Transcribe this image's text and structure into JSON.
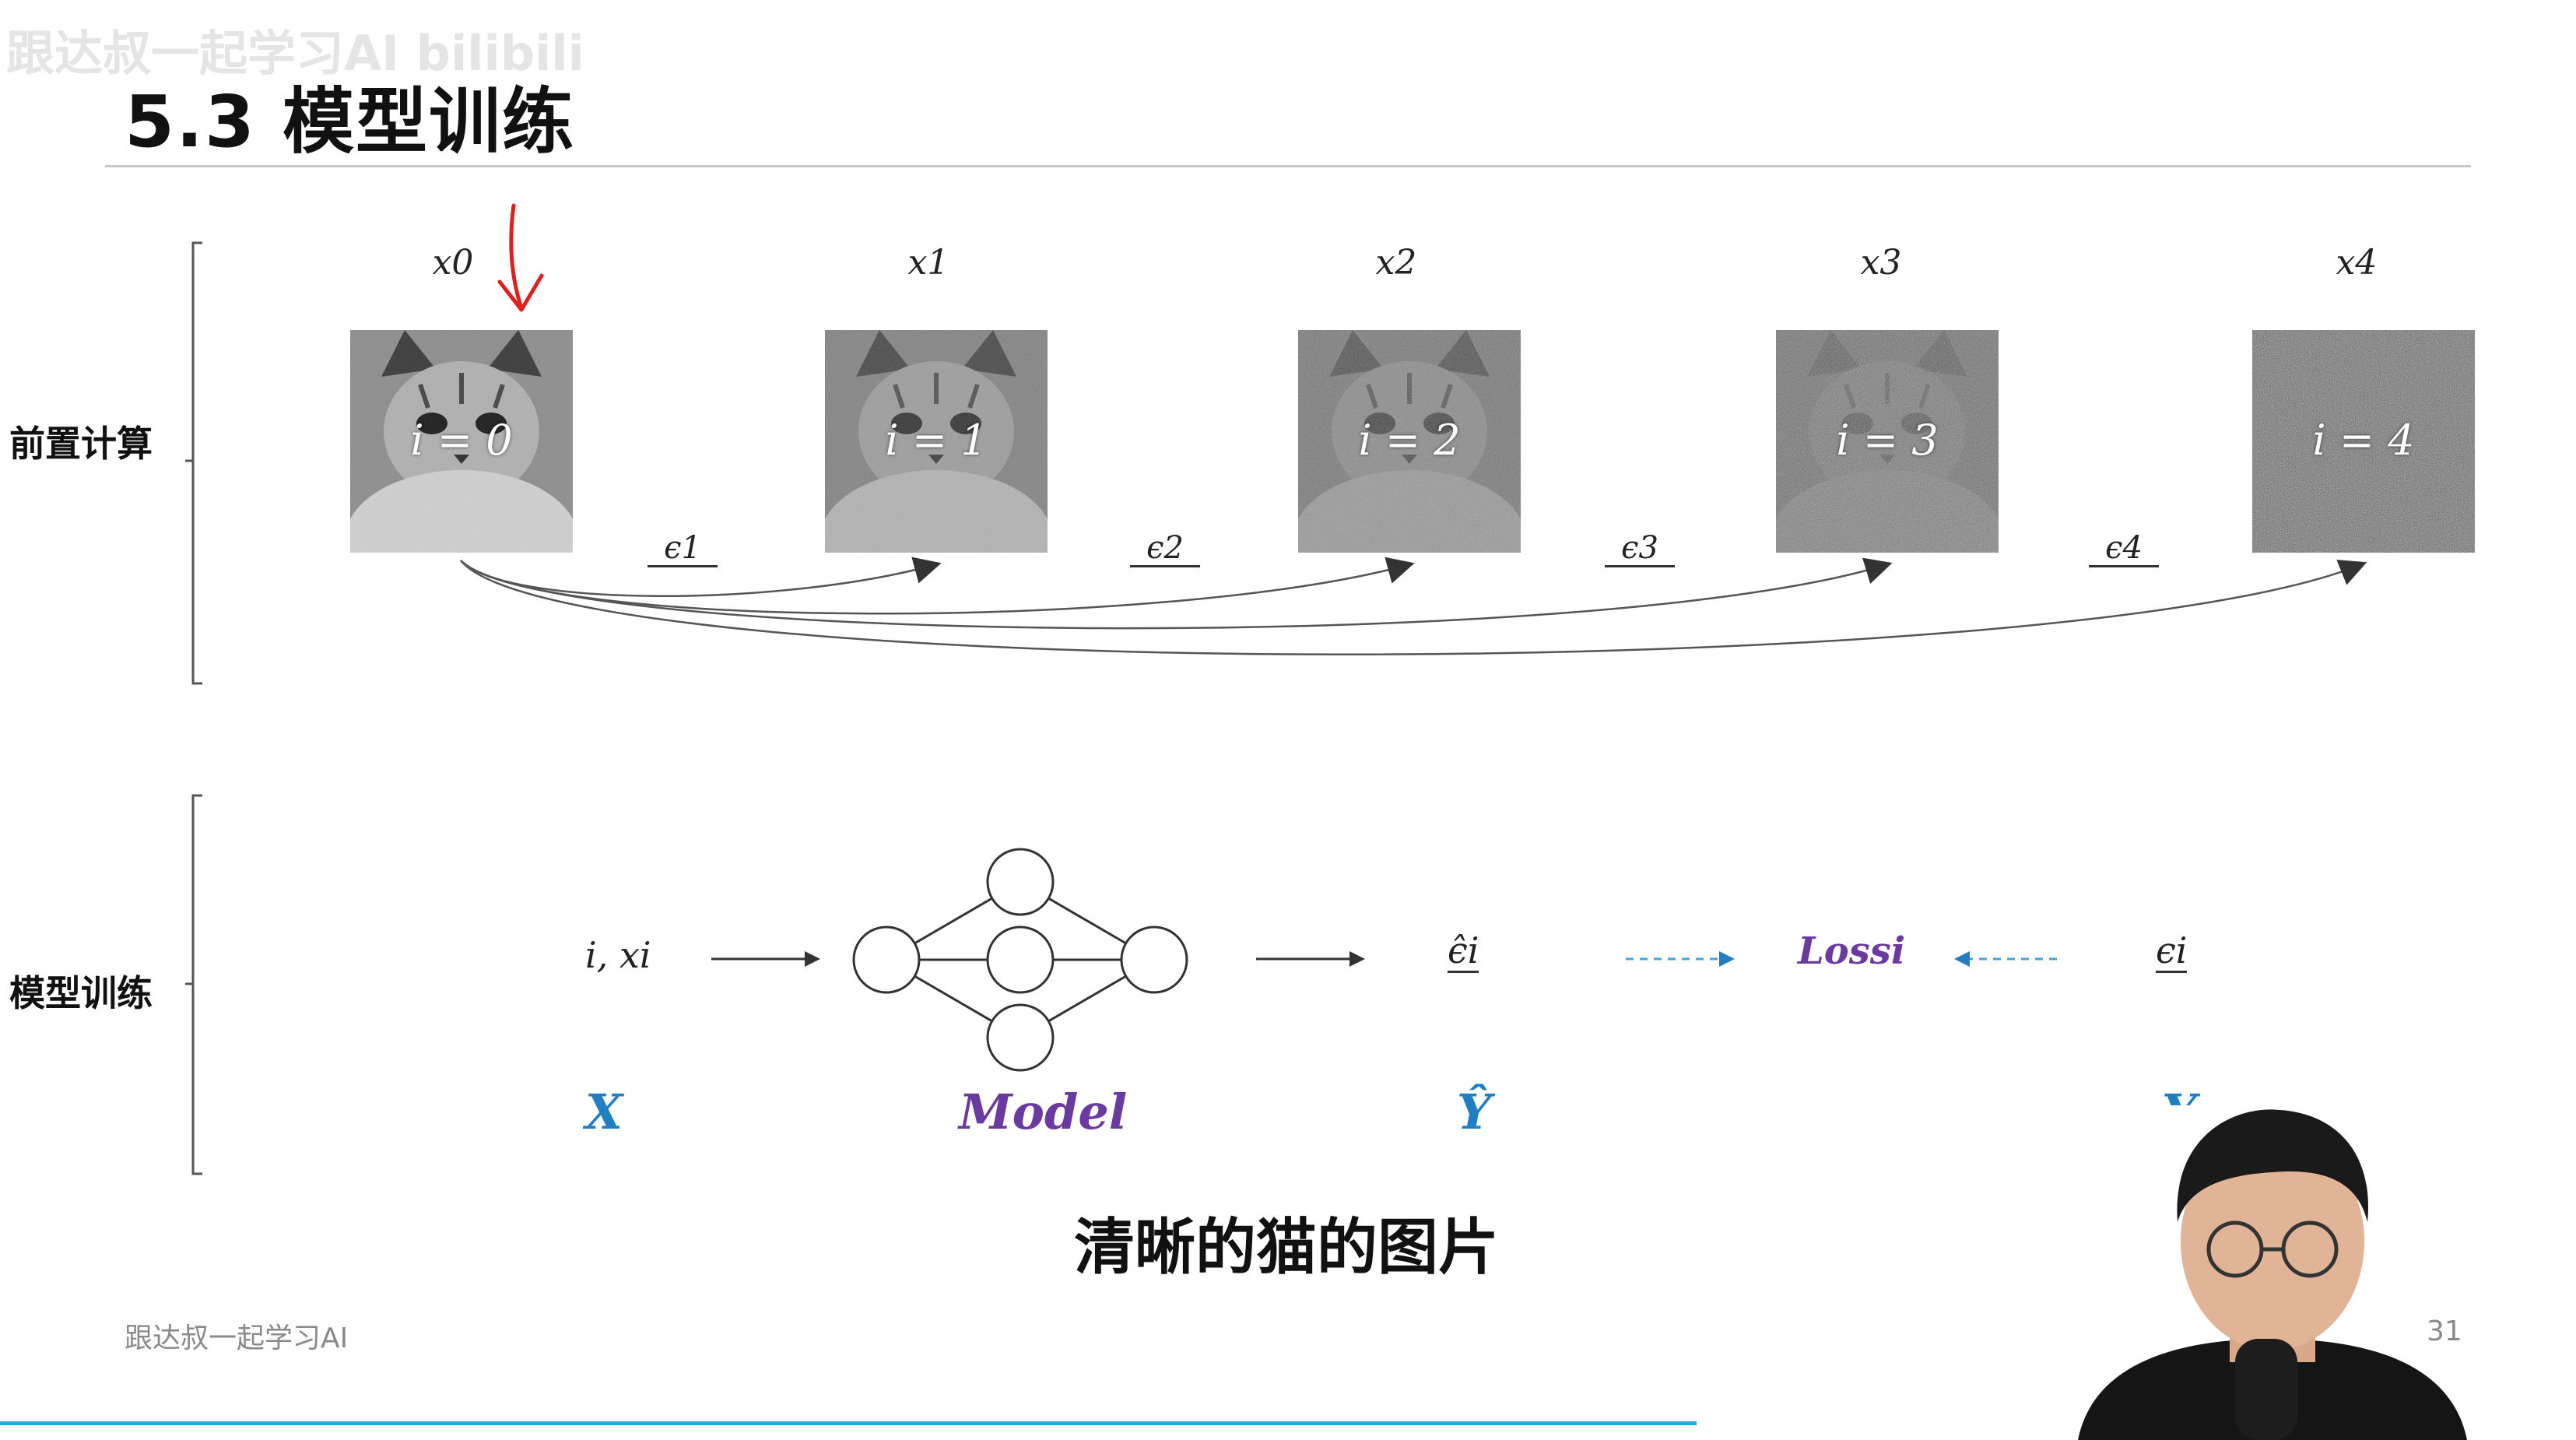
{
  "watermark": "跟达叔一起学习AI  bilibili",
  "slide": {
    "title": "5.3  模型训练",
    "sections": {
      "precompute": "前置计算",
      "training": "模型训练"
    }
  },
  "diffusion": {
    "frames": [
      {
        "x_label": "x0",
        "step_text": "i = 0",
        "noise_level": 0.0
      },
      {
        "x_label": "x1",
        "step_text": "i = 1",
        "noise_level": 0.25
      },
      {
        "x_label": "x2",
        "step_text": "i = 2",
        "noise_level": 0.5
      },
      {
        "x_label": "x3",
        "step_text": "i = 3",
        "noise_level": 0.75
      },
      {
        "x_label": "x4",
        "step_text": "i = 4",
        "noise_level": 1.0
      }
    ],
    "noise_labels": [
      "ϵ1",
      "ϵ2",
      "ϵ3",
      "ϵ4"
    ]
  },
  "training": {
    "input_text": "i, xi",
    "prediction_text": "ϵ̂i",
    "loss_text": "Lossi",
    "target_text": "ϵi",
    "roles": {
      "x": "X",
      "model": "Model",
      "y_hat": "Ŷ",
      "y": "Y"
    }
  },
  "colors": {
    "blue": "#1f7fc2",
    "purple": "#6b3aa0",
    "red_arrow": "#e02020",
    "dashed": "#4aa3d6"
  },
  "subtitle": "清晰的猫的图片",
  "footer": {
    "brand": "跟达叔一起学习AI",
    "page_number": "31"
  }
}
